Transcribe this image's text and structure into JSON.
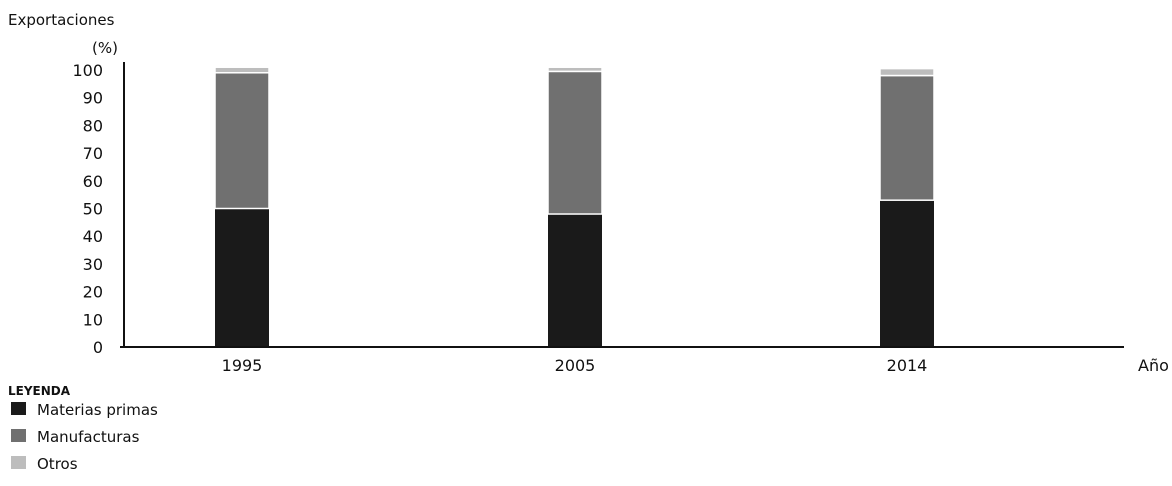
{
  "chart_data": {
    "type": "bar",
    "stacked": true,
    "categories": [
      "1995",
      "2005",
      "2014"
    ],
    "series": [
      {
        "name": "Materias primas",
        "values": [
          50,
          48,
          53
        ],
        "color": "#1a1a1a"
      },
      {
        "name": "Manufacturas",
        "values": [
          49,
          51.5,
          45
        ],
        "color": "#707070"
      },
      {
        "name": "Otros",
        "values": [
          2,
          1.5,
          2.5
        ],
        "color": "#bdbdbd"
      }
    ],
    "ylabel_line1": "Exportaciones",
    "ylabel_line2": "(%)",
    "xlabel": "Año",
    "ylim": [
      0,
      100
    ],
    "yticks": [
      0,
      10,
      20,
      30,
      40,
      50,
      60,
      70,
      80,
      90,
      100
    ],
    "grid": false,
    "legend_title": "LEYENDA",
    "legend_position": "bottom-left"
  }
}
